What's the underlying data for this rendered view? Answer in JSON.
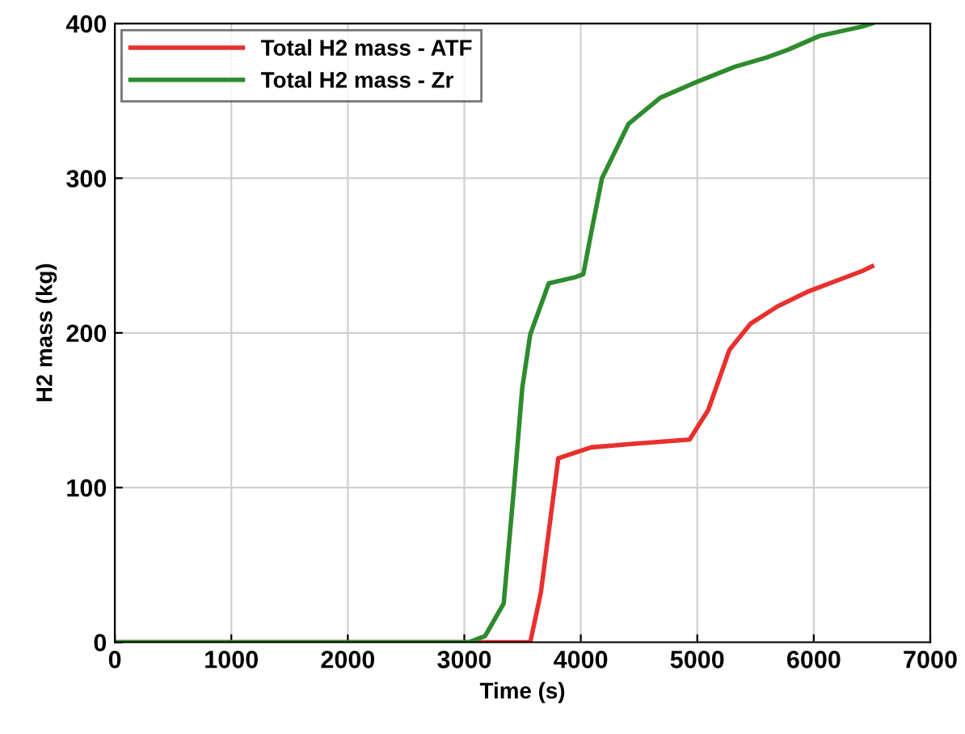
{
  "chart_data": {
    "type": "line",
    "xlabel": "Time (s)",
    "ylabel": "H2 mass (kg)",
    "xlim": [
      0,
      7000
    ],
    "xticks": [
      0,
      1000,
      2000,
      3000,
      4000,
      5000,
      6000,
      7000
    ],
    "ylim": [
      0,
      400
    ],
    "yticks": [
      0,
      100,
      200,
      300,
      400
    ],
    "grid": true,
    "legend": "top left",
    "line_style": "solid",
    "marker": "none",
    "series": [
      {
        "name": "Total H2 mass - ATF",
        "color": "#e8302e",
        "x": [
          0,
          3566,
          3657,
          3807,
          4090,
          4409,
          4934,
          5093,
          5276,
          5458,
          5686,
          5960,
          6416,
          6500
        ],
        "values": [
          0,
          0,
          32,
          119,
          126,
          128,
          131,
          150,
          189,
          206,
          217,
          227,
          240,
          243
        ]
      },
      {
        "name": "Total H2 mass - Zr",
        "color": "#2e8b2e",
        "x": [
          0,
          3037,
          3178,
          3338,
          3429,
          3497,
          3566,
          3725,
          3953,
          4022,
          4090,
          4182,
          4409,
          4683,
          4956,
          5321,
          5595,
          5777,
          6051,
          6416,
          6500
        ],
        "values": [
          0,
          0,
          4,
          25,
          102,
          164,
          199,
          232,
          236,
          238,
          265,
          300,
          335,
          352,
          361,
          372,
          378,
          383,
          392,
          398,
          400
        ]
      }
    ]
  }
}
